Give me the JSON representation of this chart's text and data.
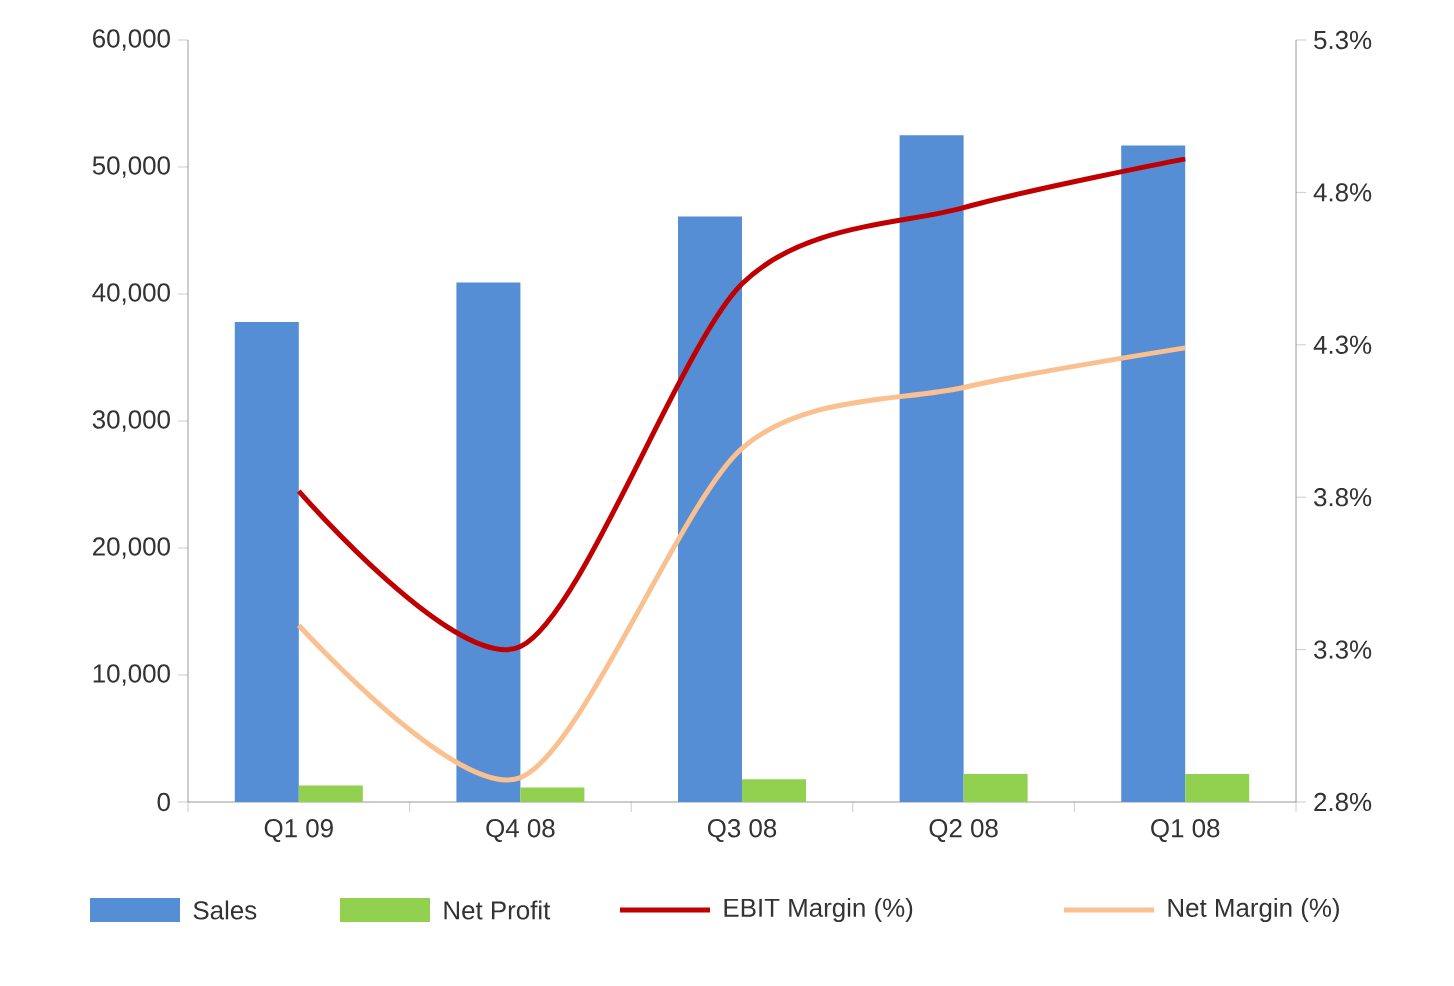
{
  "chart_data": {
    "type": "bar",
    "categories": [
      "Q1 09",
      "Q4 08",
      "Q3 08",
      "Q2 08",
      "Q1 08"
    ],
    "series": [
      {
        "name": "Sales",
        "color": "#558ed5",
        "values": [
          37800,
          40900,
          46100,
          52500,
          51700
        ]
      },
      {
        "name": "Net Profit",
        "color": "#92d050",
        "values": [
          1300,
          1150,
          1800,
          2200,
          2200
        ]
      },
      {
        "name": "EBIT Margin (%)",
        "type": "line",
        "axis": "y2",
        "color": "#c00000",
        "values": [
          3.82,
          3.31,
          4.5,
          4.75,
          4.91
        ]
      },
      {
        "name": "Net Margin (%)",
        "type": "line",
        "axis": "y2",
        "color": "#fac090",
        "values": [
          3.38,
          2.88,
          3.96,
          4.16,
          4.29
        ]
      }
    ],
    "ylim": [
      0,
      60000
    ],
    "yticks": [
      {
        "value": 0,
        "label": "0"
      },
      {
        "value": 10000,
        "label": "10,000"
      },
      {
        "value": 20000,
        "label": "20,000"
      },
      {
        "value": 30000,
        "label": "30,000"
      },
      {
        "value": 40000,
        "label": "40,000"
      },
      {
        "value": 50000,
        "label": "50,000"
      },
      {
        "value": 60000,
        "label": "60,000"
      }
    ],
    "y2lim": [
      2.8,
      5.3
    ],
    "y2ticks": [
      {
        "value": 2.8,
        "label": "2.8%"
      },
      {
        "value": 3.3,
        "label": "3.3%"
      },
      {
        "value": 3.8,
        "label": "3.8%"
      },
      {
        "value": 4.3,
        "label": "4.3%"
      },
      {
        "value": 4.8,
        "label": "4.8%"
      },
      {
        "value": 5.3,
        "label": "5.3%"
      }
    ],
    "grid": false,
    "legend": "bottom"
  }
}
